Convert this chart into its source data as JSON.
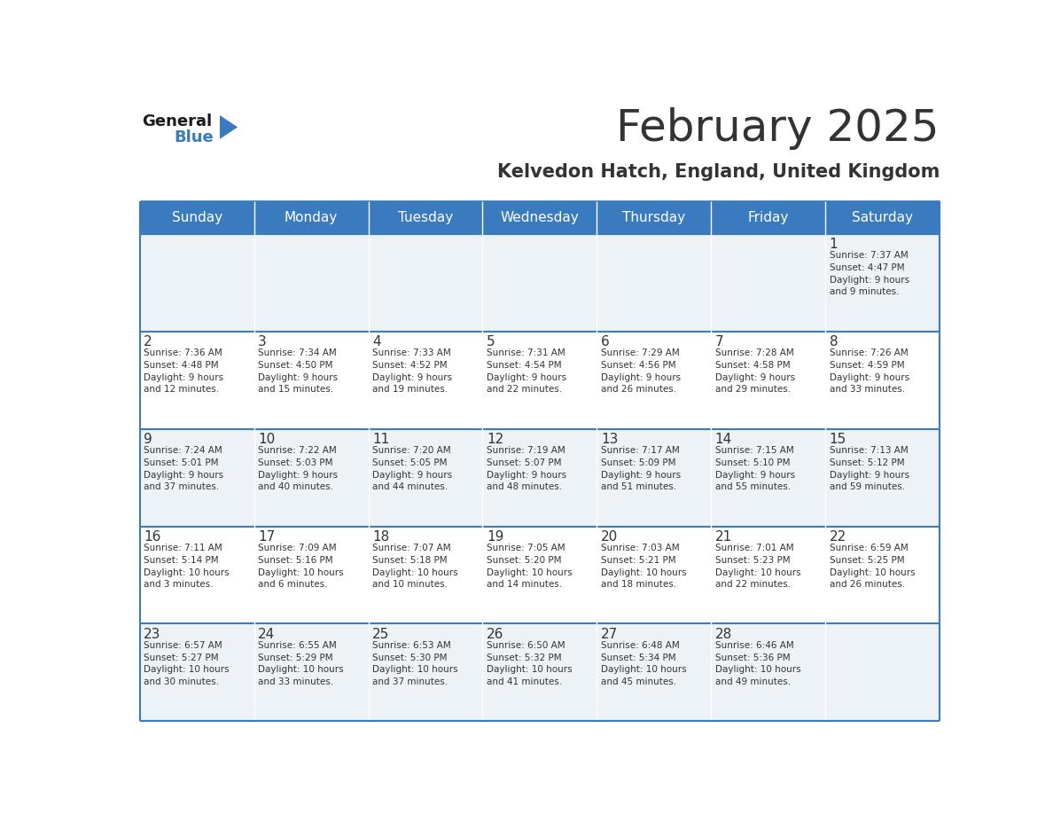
{
  "title": "February 2025",
  "subtitle": "Kelvedon Hatch, England, United Kingdom",
  "header_bg": "#3a7bbf",
  "header_text_color": "#ffffff",
  "cell_bg_odd": "#edf2f7",
  "cell_bg_even": "#ffffff",
  "border_color": "#3a7bbf",
  "text_color": "#333333",
  "days_of_week": [
    "Sunday",
    "Monday",
    "Tuesday",
    "Wednesday",
    "Thursday",
    "Friday",
    "Saturday"
  ],
  "weeks": [
    [
      {
        "day": null,
        "info": null
      },
      {
        "day": null,
        "info": null
      },
      {
        "day": null,
        "info": null
      },
      {
        "day": null,
        "info": null
      },
      {
        "day": null,
        "info": null
      },
      {
        "day": null,
        "info": null
      },
      {
        "day": 1,
        "info": "Sunrise: 7:37 AM\nSunset: 4:47 PM\nDaylight: 9 hours\nand 9 minutes."
      }
    ],
    [
      {
        "day": 2,
        "info": "Sunrise: 7:36 AM\nSunset: 4:48 PM\nDaylight: 9 hours\nand 12 minutes."
      },
      {
        "day": 3,
        "info": "Sunrise: 7:34 AM\nSunset: 4:50 PM\nDaylight: 9 hours\nand 15 minutes."
      },
      {
        "day": 4,
        "info": "Sunrise: 7:33 AM\nSunset: 4:52 PM\nDaylight: 9 hours\nand 19 minutes."
      },
      {
        "day": 5,
        "info": "Sunrise: 7:31 AM\nSunset: 4:54 PM\nDaylight: 9 hours\nand 22 minutes."
      },
      {
        "day": 6,
        "info": "Sunrise: 7:29 AM\nSunset: 4:56 PM\nDaylight: 9 hours\nand 26 minutes."
      },
      {
        "day": 7,
        "info": "Sunrise: 7:28 AM\nSunset: 4:58 PM\nDaylight: 9 hours\nand 29 minutes."
      },
      {
        "day": 8,
        "info": "Sunrise: 7:26 AM\nSunset: 4:59 PM\nDaylight: 9 hours\nand 33 minutes."
      }
    ],
    [
      {
        "day": 9,
        "info": "Sunrise: 7:24 AM\nSunset: 5:01 PM\nDaylight: 9 hours\nand 37 minutes."
      },
      {
        "day": 10,
        "info": "Sunrise: 7:22 AM\nSunset: 5:03 PM\nDaylight: 9 hours\nand 40 minutes."
      },
      {
        "day": 11,
        "info": "Sunrise: 7:20 AM\nSunset: 5:05 PM\nDaylight: 9 hours\nand 44 minutes."
      },
      {
        "day": 12,
        "info": "Sunrise: 7:19 AM\nSunset: 5:07 PM\nDaylight: 9 hours\nand 48 minutes."
      },
      {
        "day": 13,
        "info": "Sunrise: 7:17 AM\nSunset: 5:09 PM\nDaylight: 9 hours\nand 51 minutes."
      },
      {
        "day": 14,
        "info": "Sunrise: 7:15 AM\nSunset: 5:10 PM\nDaylight: 9 hours\nand 55 minutes."
      },
      {
        "day": 15,
        "info": "Sunrise: 7:13 AM\nSunset: 5:12 PM\nDaylight: 9 hours\nand 59 minutes."
      }
    ],
    [
      {
        "day": 16,
        "info": "Sunrise: 7:11 AM\nSunset: 5:14 PM\nDaylight: 10 hours\nand 3 minutes."
      },
      {
        "day": 17,
        "info": "Sunrise: 7:09 AM\nSunset: 5:16 PM\nDaylight: 10 hours\nand 6 minutes."
      },
      {
        "day": 18,
        "info": "Sunrise: 7:07 AM\nSunset: 5:18 PM\nDaylight: 10 hours\nand 10 minutes."
      },
      {
        "day": 19,
        "info": "Sunrise: 7:05 AM\nSunset: 5:20 PM\nDaylight: 10 hours\nand 14 minutes."
      },
      {
        "day": 20,
        "info": "Sunrise: 7:03 AM\nSunset: 5:21 PM\nDaylight: 10 hours\nand 18 minutes."
      },
      {
        "day": 21,
        "info": "Sunrise: 7:01 AM\nSunset: 5:23 PM\nDaylight: 10 hours\nand 22 minutes."
      },
      {
        "day": 22,
        "info": "Sunrise: 6:59 AM\nSunset: 5:25 PM\nDaylight: 10 hours\nand 26 minutes."
      }
    ],
    [
      {
        "day": 23,
        "info": "Sunrise: 6:57 AM\nSunset: 5:27 PM\nDaylight: 10 hours\nand 30 minutes."
      },
      {
        "day": 24,
        "info": "Sunrise: 6:55 AM\nSunset: 5:29 PM\nDaylight: 10 hours\nand 33 minutes."
      },
      {
        "day": 25,
        "info": "Sunrise: 6:53 AM\nSunset: 5:30 PM\nDaylight: 10 hours\nand 37 minutes."
      },
      {
        "day": 26,
        "info": "Sunrise: 6:50 AM\nSunset: 5:32 PM\nDaylight: 10 hours\nand 41 minutes."
      },
      {
        "day": 27,
        "info": "Sunrise: 6:48 AM\nSunset: 5:34 PM\nDaylight: 10 hours\nand 45 minutes."
      },
      {
        "day": 28,
        "info": "Sunrise: 6:46 AM\nSunset: 5:36 PM\nDaylight: 10 hours\nand 49 minutes."
      },
      {
        "day": null,
        "info": null
      }
    ]
  ],
  "logo_general_color": "#1a1a1a",
  "logo_blue_color": "#3a7bbf",
  "logo_triangle_color": "#3a7bbf"
}
